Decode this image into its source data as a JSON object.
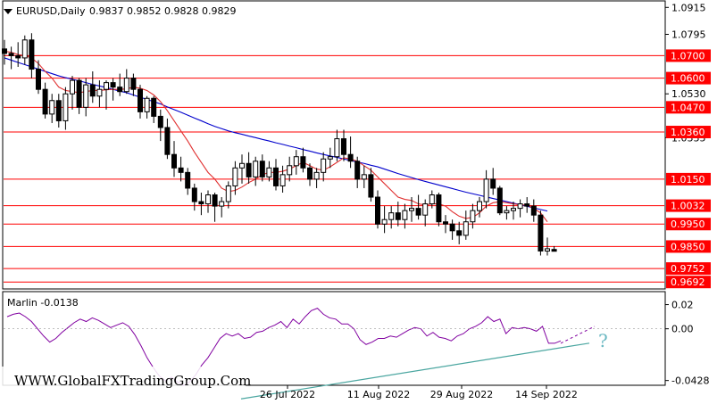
{
  "header": {
    "symbol_label": "EURUSD,Daily",
    "ohlc": "0.9837 0.9852 0.9828 0.9829"
  },
  "watermark": "WWW.GlobalFXTradingGroup.Com",
  "colors": {
    "level_line": "#ff0000",
    "level_label_bg": "#ff0000",
    "sma_fast": "#e03030",
    "sma_slow": "#0000cc",
    "candle_bull": "#ffffff",
    "candle_bear": "#000000",
    "oscillator": "#8000a0",
    "trendline": "#4aa6a0"
  },
  "chart_data": [
    {
      "type": "candlestick",
      "title": "EURUSD,Daily",
      "price_axis": {
        "range": [
          0.9665,
          1.094
        ],
        "tick_labels": [
          "1.0915",
          "1.0795",
          "1.0530",
          "1.0335"
        ]
      },
      "x_tick_labels": [
        "26 Jul 2022",
        "11 Aug 2022",
        "29 Aug 2022",
        "14 Sep 2022"
      ],
      "levels": [
        {
          "value": 1.07,
          "label": "1.0700"
        },
        {
          "value": 1.06,
          "label": "1.0600"
        },
        {
          "value": 1.047,
          "label": "1.0470"
        },
        {
          "value": 1.036,
          "label": "1.0360"
        },
        {
          "value": 1.015,
          "label": "1.0150"
        },
        {
          "value": 1.0032,
          "label": "1.0032"
        },
        {
          "value": 0.995,
          "label": "0.9950"
        },
        {
          "value": 0.985,
          "label": "0.9850"
        },
        {
          "value": 0.9752,
          "label": "0.9752"
        },
        {
          "value": 0.9692,
          "label": "0.9692"
        }
      ],
      "candles": [
        [
          1.073,
          1.077,
          1.066,
          1.071
        ],
        [
          1.071,
          1.074,
          1.064,
          1.07
        ],
        [
          1.07,
          1.076,
          1.065,
          1.069
        ],
        [
          1.069,
          1.079,
          1.066,
          1.077
        ],
        [
          1.077,
          1.08,
          1.06,
          1.064
        ],
        [
          1.064,
          1.068,
          1.053,
          1.055
        ],
        [
          1.055,
          1.058,
          1.042,
          1.044
        ],
        [
          1.044,
          1.053,
          1.04,
          1.05
        ],
        [
          1.05,
          1.053,
          1.038,
          1.041
        ],
        [
          1.041,
          1.056,
          1.037,
          1.053
        ],
        [
          1.053,
          1.061,
          1.046,
          1.059
        ],
        [
          1.059,
          1.06,
          1.044,
          1.047
        ],
        [
          1.047,
          1.06,
          1.043,
          1.057
        ],
        [
          1.057,
          1.063,
          1.049,
          1.052
        ],
        [
          1.052,
          1.059,
          1.047,
          1.055
        ],
        [
          1.055,
          1.059,
          1.046,
          1.058
        ],
        [
          1.058,
          1.06,
          1.05,
          1.056
        ],
        [
          1.056,
          1.062,
          1.052,
          1.054
        ],
        [
          1.054,
          1.064,
          1.053,
          1.06
        ],
        [
          1.06,
          1.062,
          1.052,
          1.055
        ],
        [
          1.055,
          1.057,
          1.042,
          1.045
        ],
        [
          1.045,
          1.052,
          1.042,
          1.051
        ],
        [
          1.051,
          1.052,
          1.04,
          1.043
        ],
        [
          1.043,
          1.046,
          1.032,
          1.038
        ],
        [
          1.038,
          1.042,
          1.024,
          1.026
        ],
        [
          1.026,
          1.032,
          1.016,
          1.02
        ],
        [
          1.02,
          1.025,
          1.014,
          1.018
        ],
        [
          1.018,
          1.02,
          1.008,
          1.011
        ],
        [
          1.011,
          1.013,
          1.001,
          1.005
        ],
        [
          1.005,
          1.009,
          0.999,
          1.004
        ],
        [
          1.004,
          1.01,
          1.0,
          1.008
        ],
        [
          1.008,
          1.009,
          0.996,
          1.003
        ],
        [
          1.003,
          1.007,
          0.998,
          1.005
        ],
        [
          1.005,
          1.014,
          1.002,
          1.012
        ],
        [
          1.012,
          1.023,
          1.008,
          1.02
        ],
        [
          1.02,
          1.026,
          1.013,
          1.022
        ],
        [
          1.022,
          1.027,
          1.013,
          1.016
        ],
        [
          1.016,
          1.025,
          1.012,
          1.023
        ],
        [
          1.023,
          1.026,
          1.014,
          1.016
        ],
        [
          1.016,
          1.023,
          1.014,
          1.02
        ],
        [
          1.02,
          1.024,
          1.01,
          1.012
        ],
        [
          1.012,
          1.021,
          1.009,
          1.017
        ],
        [
          1.017,
          1.025,
          1.014,
          1.021
        ],
        [
          1.021,
          1.028,
          1.017,
          1.025
        ],
        [
          1.025,
          1.029,
          1.018,
          1.02
        ],
        [
          1.02,
          1.022,
          1.012,
          1.015
        ],
        [
          1.015,
          1.02,
          1.011,
          1.018
        ],
        [
          1.018,
          1.027,
          1.014,
          1.024
        ],
        [
          1.024,
          1.029,
          1.02,
          1.025
        ],
        [
          1.025,
          1.037,
          1.023,
          1.033
        ],
        [
          1.033,
          1.037,
          1.023,
          1.026
        ],
        [
          1.026,
          1.034,
          1.02,
          1.023
        ],
        [
          1.023,
          1.025,
          1.011,
          1.015
        ],
        [
          1.015,
          1.021,
          1.011,
          1.017
        ],
        [
          1.017,
          1.02,
          1.005,
          1.007
        ],
        [
          1.007,
          1.01,
          0.993,
          0.995
        ],
        [
          0.995,
          1.003,
          0.991,
          0.997
        ],
        [
          0.997,
          1.003,
          0.993,
          1.0
        ],
        [
          1.0,
          1.005,
          0.994,
          0.997
        ],
        [
          0.997,
          1.004,
          0.993,
          1.001
        ],
        [
          1.001,
          1.007,
          0.996,
          1.002
        ],
        [
          1.002,
          1.008,
          0.997,
          0.999
        ],
        [
          0.999,
          1.006,
          0.994,
          1.004
        ],
        [
          1.004,
          1.01,
          1.002,
          1.008
        ],
        [
          1.008,
          1.009,
          0.994,
          0.996
        ],
        [
          0.996,
          0.999,
          0.991,
          0.995
        ],
        [
          0.995,
          0.997,
          0.988,
          0.992
        ],
        [
          0.992,
          0.996,
          0.986,
          0.99
        ],
        [
          0.99,
          1.001,
          0.988,
          0.996
        ],
        [
          0.996,
          1.004,
          0.993,
          1.001
        ],
        [
          1.001,
          1.007,
          0.998,
          1.005
        ],
        [
          1.005,
          1.019,
          1.002,
          1.015
        ],
        [
          1.015,
          1.02,
          1.008,
          1.011
        ],
        [
          1.011,
          1.012,
          0.999,
          1.0
        ],
        [
          1.0,
          1.003,
          0.997,
          1.001
        ],
        [
          1.001,
          1.005,
          0.997,
          1.002
        ],
        [
          1.002,
          1.006,
          0.998,
          1.004
        ],
        [
          1.004,
          1.007,
          1.0,
          1.003
        ],
        [
          1.003,
          1.006,
          0.996,
          0.999
        ],
        [
          0.999,
          1.001,
          0.981,
          0.983
        ],
        [
          0.983,
          0.989,
          0.981,
          0.984
        ],
        [
          0.9837,
          0.9852,
          0.9828,
          0.9829
        ]
      ],
      "sma_fast": [
        1.072,
        1.0715,
        1.0705,
        1.07,
        1.069,
        1.0665,
        1.063,
        1.06,
        1.056,
        1.0545,
        1.054,
        1.0535,
        1.054,
        1.0545,
        1.0545,
        1.0548,
        1.055,
        1.055,
        1.0552,
        1.056,
        1.0555,
        1.0545,
        1.0525,
        1.0495,
        1.0455,
        1.041,
        1.0365,
        1.032,
        1.027,
        1.0225,
        1.018,
        1.015,
        1.011,
        1.0095,
        1.01,
        1.0115,
        1.0135,
        1.015,
        1.017,
        1.018,
        1.018,
        1.0185,
        1.0195,
        1.021,
        1.0225,
        1.021,
        1.0195,
        1.019,
        1.0205,
        1.0225,
        1.0245,
        1.024,
        1.023,
        1.021,
        1.019,
        1.016,
        1.013,
        1.01,
        1.007,
        1.006,
        1.0055,
        1.004,
        1.0035,
        1.004,
        1.004,
        1.003,
        1.0005,
        0.9985,
        0.9975,
        0.998,
        1.0,
        1.003,
        1.0045,
        1.005,
        1.0045,
        1.004,
        1.0035,
        1.0035,
        1.002,
        1.0,
        0.996
      ],
      "sma_slow": [
        1.069,
        1.068,
        1.067,
        1.066,
        1.065,
        1.064,
        1.063,
        1.062,
        1.061,
        1.0602,
        1.0595,
        1.0588,
        1.058,
        1.0572,
        1.0565,
        1.0558,
        1.055,
        1.0542,
        1.0535,
        1.0525,
        1.0515,
        1.0505,
        1.0495,
        1.0485,
        1.0472,
        1.046,
        1.0448,
        1.0435,
        1.0422,
        1.041,
        1.0397,
        1.0385,
        1.0375,
        1.0365,
        1.0357,
        1.035,
        1.0342,
        1.0335,
        1.0327,
        1.032,
        1.0312,
        1.0305,
        1.0297,
        1.029,
        1.0282,
        1.0275,
        1.0267,
        1.026,
        1.0253,
        1.0247,
        1.024,
        1.0233,
        1.0226,
        1.022,
        1.0212,
        1.0205,
        1.0195,
        1.0185,
        1.0175,
        1.0166,
        1.0157,
        1.0148,
        1.014,
        1.0132,
        1.0124,
        1.0116,
        1.0108,
        1.01,
        1.0092,
        1.0085,
        1.0078,
        1.0071,
        1.0064,
        1.0057,
        1.005,
        1.0043,
        1.0036,
        1.0029,
        1.0022,
        1.0015,
        1.0008
      ]
    },
    {
      "type": "line",
      "title": "Marlin -0.0138",
      "ylim": [
        -0.046,
        0.03
      ],
      "y_tick_labels": [
        "0.02",
        "0.00",
        "-0.0428"
      ],
      "annotation": "?",
      "values": [
        0.01,
        0.012,
        0.013,
        0.01,
        0.006,
        0.0,
        -0.006,
        -0.011,
        -0.008,
        -0.003,
        0.001,
        0.005,
        0.008,
        0.006,
        0.009,
        0.007,
        0.004,
        0.001,
        0.003,
        0.005,
        0.002,
        -0.005,
        -0.014,
        -0.024,
        -0.032,
        -0.039,
        -0.043,
        -0.04,
        -0.044,
        -0.047,
        -0.044,
        -0.038,
        -0.03,
        -0.024,
        -0.016,
        -0.008,
        -0.004,
        -0.006,
        -0.004,
        -0.008,
        -0.007,
        -0.003,
        -0.002,
        0.001,
        0.003,
        0.006,
        0.001,
        0.008,
        0.004,
        0.01,
        0.015,
        0.017,
        0.012,
        0.009,
        0.008,
        0.004,
        0.004,
        0.0,
        -0.009,
        -0.013,
        -0.011,
        -0.008,
        -0.008,
        -0.006,
        -0.007,
        -0.004,
        -0.001,
        0.001,
        0.0,
        -0.006,
        -0.003,
        -0.007,
        -0.008,
        -0.01,
        -0.006,
        -0.004,
        0.0,
        0.002,
        0.005,
        0.01,
        0.006,
        0.008,
        -0.004,
        0.001,
        0.0,
        0.001,
        0.0,
        -0.002,
        0.002,
        -0.012,
        -0.012,
        -0.01
      ],
      "forecast": [
        -0.012,
        0.002
      ],
      "trendline": [
        -0.058,
        -0.0119
      ]
    }
  ]
}
